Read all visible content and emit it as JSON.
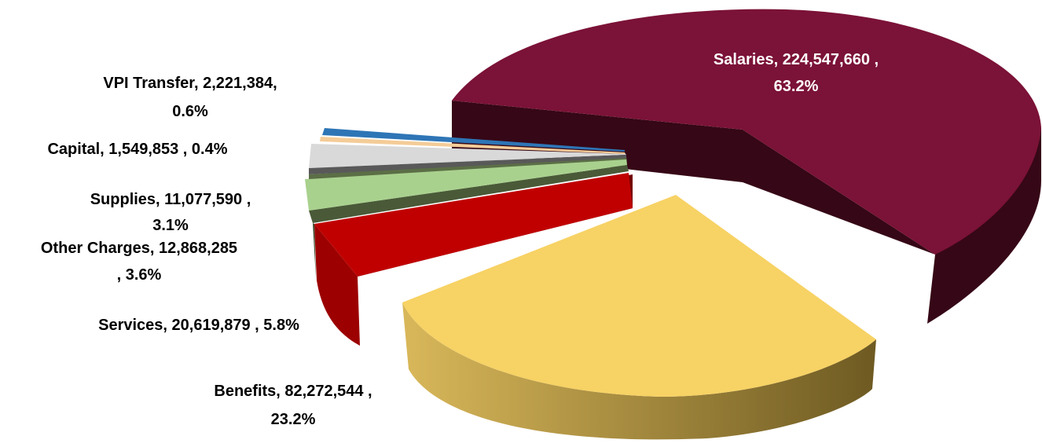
{
  "chart_data": {
    "type": "pie",
    "title": "",
    "style": "3d-exploded",
    "legend": "none",
    "slices": [
      {
        "label": "Salaries",
        "value": 224547660,
        "percent": 63.2,
        "color": "#7b1237",
        "label_lines": [
          "Salaries, 224,547,660 ,",
          "63.2%"
        ]
      },
      {
        "label": "Benefits",
        "value": 82272544,
        "percent": 23.2,
        "color": "#f7d264",
        "label_lines": [
          "Benefits, 82,272,544 ,",
          "23.2%"
        ]
      },
      {
        "label": "Services",
        "value": 20619879,
        "percent": 5.8,
        "color": "#c00000",
        "label_lines": [
          "Services, 20,619,879 , 5.8%"
        ]
      },
      {
        "label": "Other Charges",
        "value": 12868285,
        "percent": 3.6,
        "color": "#4a5a38",
        "label_lines": [
          "Other Charges, 12,868,285",
          ", 3.6%"
        ]
      },
      {
        "label": "Supplies",
        "value": 11077590,
        "percent": 3.1,
        "color": "#a9d18e",
        "label_lines": [
          "Supplies, 11,077,590 ,",
          "3.1%"
        ]
      },
      {
        "label": "Capital",
        "value": 1549853,
        "percent": 0.4,
        "color": "#f4cc98",
        "label_lines": [
          "Capital, 1,549,853 , 0.4%"
        ]
      },
      {
        "label": "VPI Transfer",
        "value": 2221384,
        "percent": 0.6,
        "color": "#2e75b6",
        "label_lines": [
          "VPI Transfer, 2,221,384,",
          "0.6%"
        ]
      }
    ]
  }
}
